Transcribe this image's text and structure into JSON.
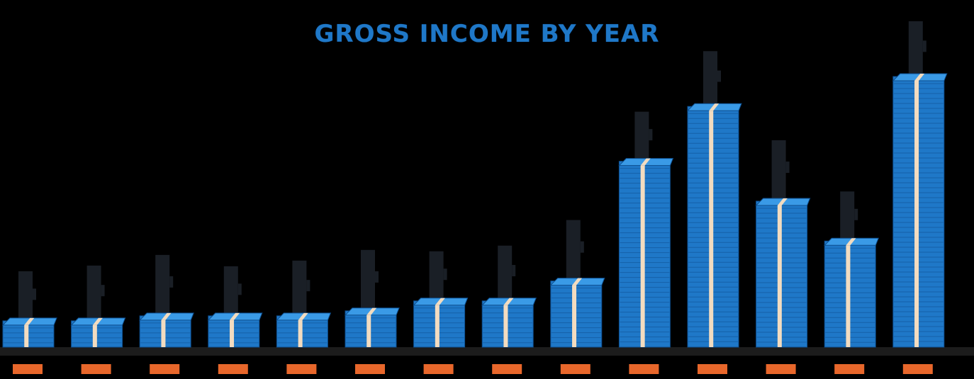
{
  "chart_data": {
    "type": "bar",
    "title": "GROSS INCOME BY YEAR",
    "xlabel": "",
    "ylabel": "",
    "categories": [
      "",
      "",
      "",
      "",
      "",
      "",
      "",
      "",
      "",
      "",
      "",
      "",
      "",
      ""
    ],
    "values": [
      3,
      3,
      4,
      4,
      4,
      5,
      7,
      7,
      11,
      35,
      46,
      27,
      19,
      52
    ],
    "ylim": [
      0,
      52
    ],
    "grid": false,
    "legend": "none",
    "colors": {
      "background": "#000000",
      "bar_fill": "#1f78c8",
      "bar_top": "#3a9ae6",
      "bar_edge": "#0d4e8f",
      "band": "#f3dcc0",
      "callout": "#1a1f26",
      "baseline": "#1c1c1c",
      "year_label_bg": "#e8672b"
    }
  }
}
